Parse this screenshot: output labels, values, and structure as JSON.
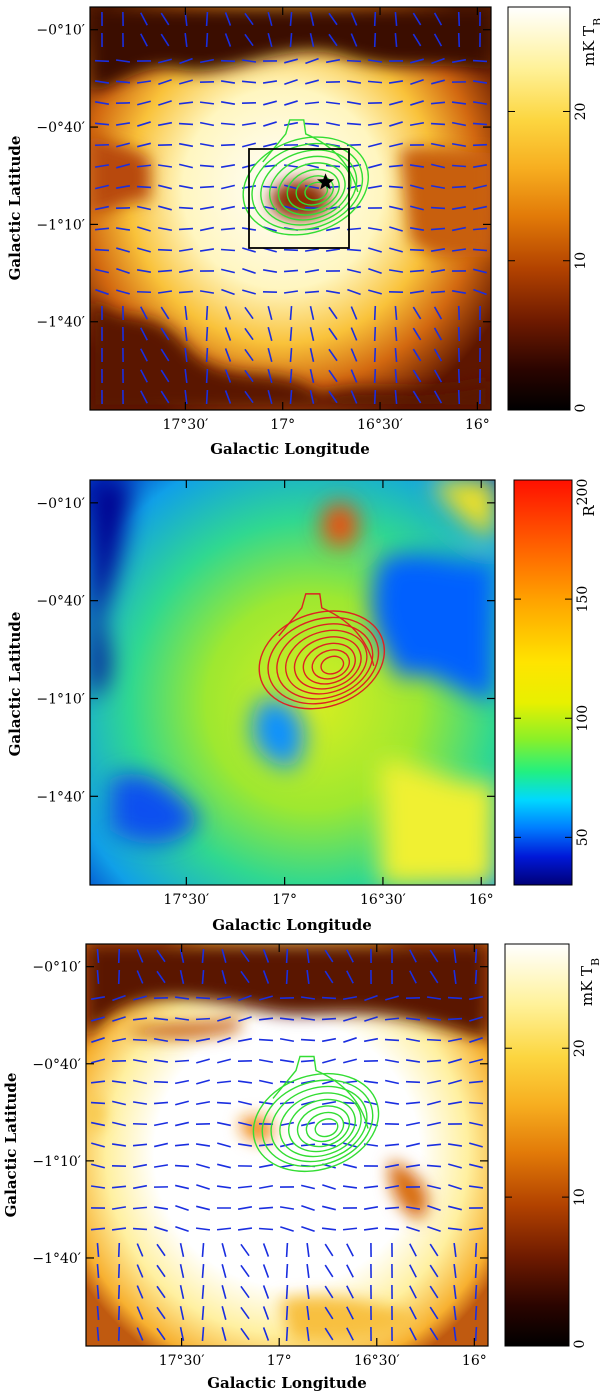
{
  "chart_data": [
    {
      "type": "heatmap",
      "panel": "top",
      "xlabel": "Galactic Longitude",
      "ylabel": "Galactic Latitude",
      "x_ticks": [
        "17°30′",
        "17°",
        "16°30′",
        "16°"
      ],
      "y_ticks": [
        "−0°10′",
        "−0°40′",
        "−1°10′",
        "−1°40′"
      ],
      "x_tick_values_deg": [
        17.5,
        17.0,
        16.5,
        16.0
      ],
      "y_tick_values_deg": [
        -0.1667,
        -0.6667,
        -1.1667,
        -1.6667
      ],
      "xlim_deg": [
        17.99,
        15.93
      ],
      "ylim_deg": [
        -2.12,
        -0.05
      ],
      "colorbar": {
        "label": "mK T",
        "label_sub": "B",
        "ticks": [
          "0",
          "10",
          "20"
        ],
        "tick_values": [
          0,
          10,
          20
        ],
        "range": [
          0,
          27
        ],
        "colormap": "heat"
      },
      "contours": {
        "color": "#33dd33",
        "center_deg": [
          16.82,
          -1.0
        ]
      },
      "vectors": {
        "color": "#1a2ee0"
      },
      "marker": {
        "shape": "star",
        "position_deg": [
          16.78,
          -0.95
        ]
      },
      "box_deg": {
        "l_range": [
          17.2,
          16.7
        ],
        "b_range": [
          -0.81,
          -1.31
        ]
      }
    },
    {
      "type": "heatmap",
      "panel": "middle",
      "xlabel": "Galactic Longitude",
      "ylabel": "Galactic Latitude",
      "x_ticks": [
        "17°30′",
        "17°",
        "16°30′",
        "16°"
      ],
      "y_ticks": [
        "−0°10′",
        "−0°40′",
        "−1°10′",
        "−1°40′"
      ],
      "x_tick_values_deg": [
        17.5,
        17.0,
        16.5,
        16.0
      ],
      "y_tick_values_deg": [
        -0.1667,
        -0.6667,
        -1.1667,
        -1.6667
      ],
      "xlim_deg": [
        17.99,
        15.93
      ],
      "ylim_deg": [
        -2.12,
        -0.05
      ],
      "colorbar": {
        "label": "R",
        "ticks": [
          "50",
          "100",
          "150",
          "200"
        ],
        "tick_values": [
          50,
          100,
          150,
          200
        ],
        "range": [
          30,
          200
        ],
        "colormap": "jet"
      },
      "contours": {
        "color": "#dd2222",
        "center_deg": [
          16.75,
          -1.0
        ]
      }
    },
    {
      "type": "heatmap",
      "panel": "bottom",
      "xlabel": "Galactic Longitude",
      "ylabel": "Galactic Latitude",
      "x_ticks": [
        "17°30′",
        "17°",
        "16°30′",
        "16°"
      ],
      "y_ticks": [
        "−0°10′",
        "−0°40′",
        "−1°10′",
        "−1°40′"
      ],
      "x_tick_values_deg": [
        17.5,
        17.0,
        16.5,
        16.0
      ],
      "y_tick_values_deg": [
        -0.1667,
        -0.6667,
        -1.1667,
        -1.6667
      ],
      "xlim_deg": [
        17.99,
        15.93
      ],
      "ylim_deg": [
        -2.12,
        -0.05
      ],
      "colorbar": {
        "label": "mK T",
        "label_sub": "B",
        "ticks": [
          "0",
          "10",
          "20"
        ],
        "tick_values": [
          0,
          10,
          20
        ],
        "range": [
          0,
          27
        ],
        "colormap": "heat"
      },
      "contours": {
        "color": "#33dd33",
        "center_deg": [
          16.75,
          -1.0
        ]
      },
      "vectors": {
        "color": "#1a2ee0"
      }
    }
  ],
  "colors": {
    "contour_green": "#33dd33",
    "contour_red": "#dd2222",
    "vector_blue": "#1a2ee0"
  }
}
